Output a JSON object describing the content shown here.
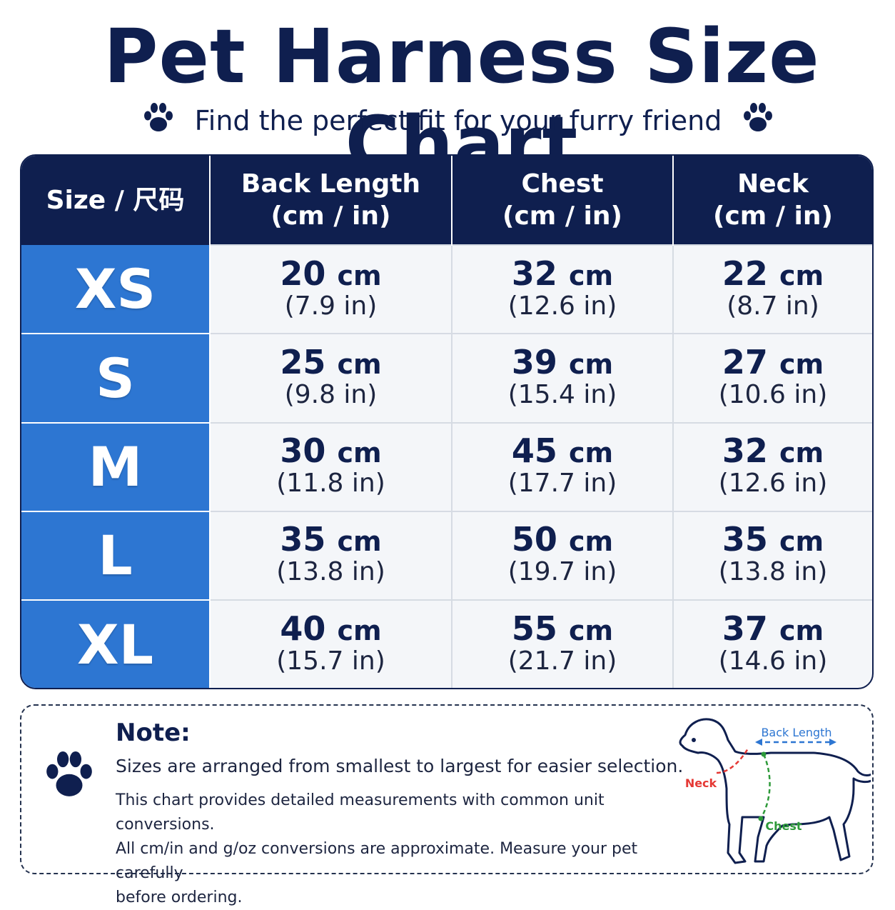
{
  "title": "Pet Harness Size Chart",
  "subtitle": "Find the perfect fit for your furry friend",
  "colors": {
    "header": "#0f1f4f",
    "size_column": "#2d76d2",
    "back_length": "#2d76d2",
    "neck": "#e53935",
    "chest": "#2e9a3a"
  },
  "icons": [
    "paw-icon",
    "dog-diagram-icon"
  ],
  "chart_data": {
    "type": "table",
    "columns": [
      {
        "line1": "Size / 尺码",
        "line2": ""
      },
      {
        "line1": "Back Length",
        "line2": "(cm / in)"
      },
      {
        "line1": "Chest",
        "line2": "(cm / in)"
      },
      {
        "line1": "Neck",
        "line2": "(cm / in)"
      }
    ],
    "rows": [
      {
        "size": "XS",
        "cells": [
          {
            "cm": "20",
            "in": "(7.9 in)"
          },
          {
            "cm": "32",
            "in": "(12.6 in)"
          },
          {
            "cm": "22",
            "in": "(8.7 in)"
          }
        ]
      },
      {
        "size": "S",
        "cells": [
          {
            "cm": "25",
            "in": "(9.8 in)"
          },
          {
            "cm": "39",
            "in": "(15.4 in)"
          },
          {
            "cm": "27",
            "in": "(10.6 in)"
          }
        ]
      },
      {
        "size": "M",
        "cells": [
          {
            "cm": "30",
            "in": "(11.8 in)"
          },
          {
            "cm": "45",
            "in": "(17.7 in)"
          },
          {
            "cm": "32",
            "in": "(12.6 in)"
          }
        ]
      },
      {
        "size": "L",
        "cells": [
          {
            "cm": "35",
            "in": "(13.8 in)"
          },
          {
            "cm": "50",
            "in": "(19.7 in)"
          },
          {
            "cm": "35",
            "in": "(13.8 in)"
          }
        ]
      },
      {
        "size": "XL",
        "cells": [
          {
            "cm": "40",
            "in": "(15.7 in)"
          },
          {
            "cm": "55",
            "in": "(21.7 in)"
          },
          {
            "cm": "37",
            "in": "(14.6 in)"
          }
        ]
      }
    ],
    "cm_unit": "cm"
  },
  "note": {
    "title": "Note:",
    "line1": "Sizes are arranged from smallest to largest for easier selection.",
    "line2": "This chart provides detailed measurements with common unit conversions.",
    "line3": "All cm/in and g/oz conversions are approximate. Measure your pet carefully",
    "line4": "before ordering."
  },
  "diagram": {
    "back_length_label": "Back Length",
    "neck_label": "Neck",
    "chest_label": "Chest"
  }
}
